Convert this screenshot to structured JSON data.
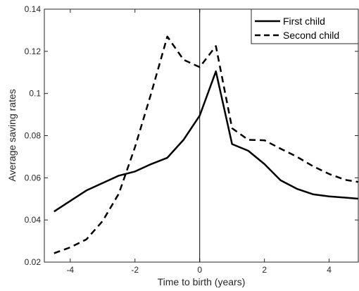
{
  "chart_data": {
    "type": "line",
    "xlabel": "Time to birth (years)",
    "ylabel": "Average saving rates",
    "xlim": [
      -4.8,
      4.9
    ],
    "ylim": [
      0.02,
      0.14
    ],
    "x_ticks": [
      -4,
      -2,
      0,
      2,
      4
    ],
    "y_ticks": [
      0.02,
      0.04,
      0.06,
      0.08,
      0.1,
      0.12,
      0.14
    ],
    "x_tick_labels": [
      "-4",
      "-2",
      "0",
      "2",
      "4"
    ],
    "y_tick_labels": [
      "0.02",
      "0.04",
      "0.06",
      "0.08",
      "0.1",
      "0.12",
      "0.14"
    ],
    "grid": false,
    "legend_position": "top-right",
    "reference_line_x": 0,
    "x": [
      -4.5,
      -4.0,
      -3.5,
      -3.0,
      -2.5,
      -2.0,
      -1.5,
      -1.0,
      -0.5,
      0.0,
      0.5,
      1.0,
      1.5,
      2.0,
      2.5,
      3.0,
      3.5,
      4.0,
      4.5,
      4.9
    ],
    "series": [
      {
        "name": "First child",
        "style": "solid",
        "color": "#000000",
        "values": [
          0.044,
          0.049,
          0.054,
          0.0575,
          0.061,
          0.063,
          0.0665,
          0.0695,
          0.078,
          0.0895,
          0.1105,
          0.076,
          0.0728,
          0.0665,
          0.0588,
          0.0548,
          0.0522,
          0.0512,
          0.0506,
          0.0501
        ]
      },
      {
        "name": "Second child",
        "style": "dashed",
        "color": "#000000",
        "values": [
          0.0242,
          0.027,
          0.0308,
          0.0395,
          0.0525,
          0.0745,
          0.1,
          0.127,
          0.116,
          0.1125,
          0.1225,
          0.0835,
          0.078,
          0.0778,
          0.0738,
          0.07,
          0.0655,
          0.0618,
          0.059,
          0.058
        ]
      }
    ]
  }
}
